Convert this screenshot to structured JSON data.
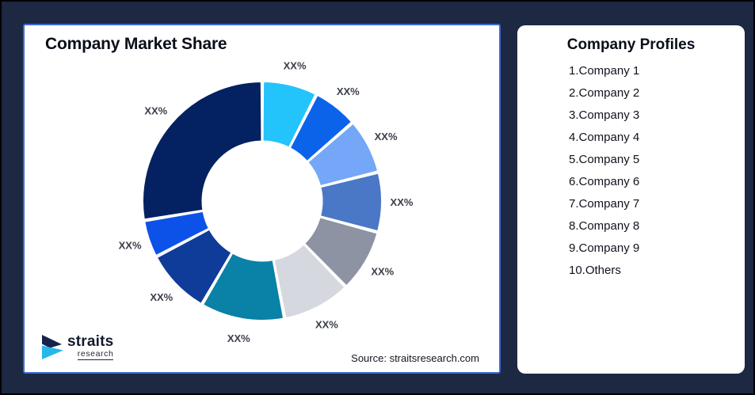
{
  "theme": {
    "background": "#1D2843",
    "canvas_border": "#000000",
    "card_bg": "#FFFFFF",
    "left_card_border": "#3E6BD5",
    "title_color": "#0A0E1A",
    "segment_label_color": "#3A3E49",
    "segment_gap_color": "#FFFFFF"
  },
  "left_card": {
    "title": "Company Market Share",
    "source": "Source: straitsresearch.com",
    "logo": {
      "name": "straits",
      "sub": "research",
      "mark_dark": "#16224A",
      "mark_cyan": "#29B7EA"
    }
  },
  "right_card": {
    "title": "Company Profiles",
    "items": [
      "1.Company 1",
      "2.Company 2",
      "3.Company 3",
      "4.Company 4",
      "5.Company 5",
      "6.Company 6",
      "7.Company 7",
      "8.Company 8",
      "9.Company 9",
      "10.Others"
    ]
  },
  "chart_data": {
    "type": "pie",
    "subtype": "donut",
    "title": "Company Market Share",
    "start_angle_deg": 0,
    "direction": "clockwise",
    "inner_radius_ratio": 0.5,
    "legend_position": "none",
    "all_labels_masked_as": "XX%",
    "segments": [
      {
        "name": "Company 1",
        "label": "XX%",
        "share_pct_est": 7.5,
        "color": "#23C3FB"
      },
      {
        "name": "Company 2",
        "label": "XX%",
        "share_pct_est": 6.1,
        "color": "#0B63EA"
      },
      {
        "name": "Company 3",
        "label": "XX%",
        "share_pct_est": 7.5,
        "color": "#74A7F7"
      },
      {
        "name": "Company 4",
        "label": "XX%",
        "share_pct_est": 8.1,
        "color": "#4A77C6"
      },
      {
        "name": "Company 5",
        "label": "XX%",
        "share_pct_est": 8.5,
        "color": "#8D93A3"
      },
      {
        "name": "Company 6",
        "label": "XX%",
        "share_pct_est": 9.3,
        "color": "#D5D8DE"
      },
      {
        "name": "Company 7",
        "label": "XX%",
        "share_pct_est": 11.4,
        "color": "#0A81A6"
      },
      {
        "name": "Company 8",
        "label": "XX%",
        "share_pct_est": 8.9,
        "color": "#0F3C99"
      },
      {
        "name": "Company 9",
        "label": "XX%",
        "share_pct_est": 5.1,
        "color": "#0C52E8"
      },
      {
        "name": "Others",
        "label": "XX%",
        "share_pct_est": 27.6,
        "color": "#042161"
      }
    ]
  }
}
